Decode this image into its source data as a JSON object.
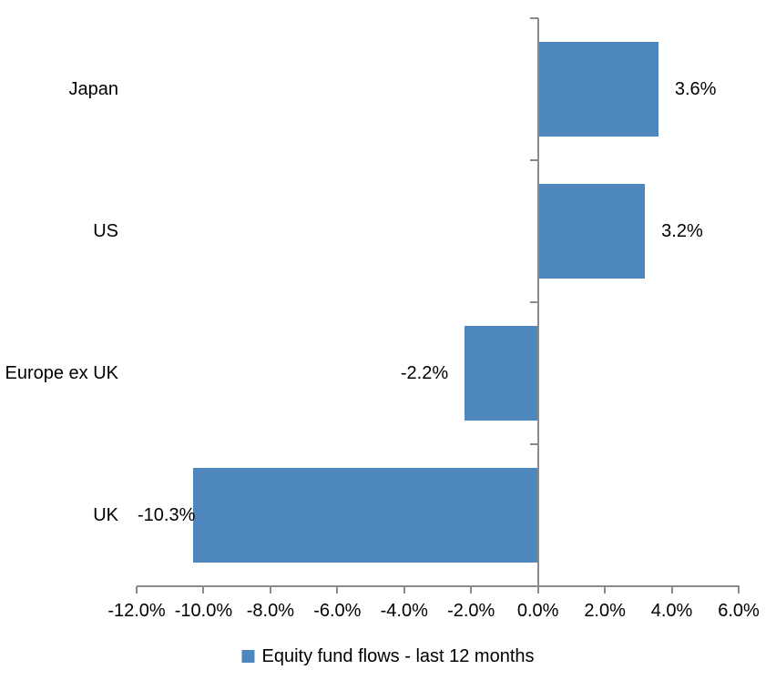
{
  "chart_data": {
    "type": "bar",
    "orientation": "horizontal",
    "title": "",
    "categories": [
      "Japan",
      "US",
      "Europe ex UK",
      "UK"
    ],
    "values": [
      3.6,
      3.2,
      -2.2,
      -10.3
    ],
    "value_labels": [
      "3.6%",
      "3.2%",
      "-2.2%",
      "-10.3%"
    ],
    "xlim": [
      -12,
      6
    ],
    "x_tick_values": [
      -12,
      -10,
      -8,
      -6,
      -4,
      -2,
      0,
      2,
      4,
      6
    ],
    "x_tick_labels": [
      "-12.0%",
      "-10.0%",
      "-8.0%",
      "-6.0%",
      "-4.0%",
      "-2.0%",
      "0.0%",
      "2.0%",
      "4.0%",
      "6.0%"
    ],
    "grid": false,
    "legend_position": "bottom",
    "legend": [
      {
        "label": "Equity fund flows - last 12 months",
        "color": "#4E87BD"
      }
    ],
    "bar_color": "#4E87BD",
    "axis_color": "#8A8A8A",
    "text_color": "#000000",
    "background": "#FFFFFF"
  }
}
